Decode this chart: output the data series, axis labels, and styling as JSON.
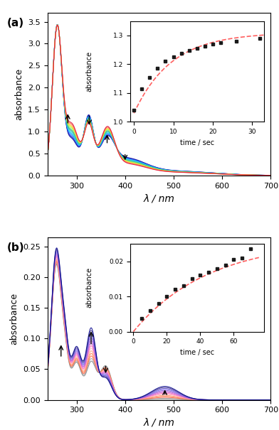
{
  "panel_a": {
    "label": "(a)",
    "xlabel": "λ / nm",
    "ylabel": "absorbance",
    "xlim": [
      240,
      700
    ],
    "ylim": [
      0.0,
      3.7
    ],
    "yticks": [
      0.0,
      0.5,
      1.0,
      1.5,
      2.0,
      2.5,
      3.0,
      3.5
    ],
    "xticks": [
      300,
      400,
      500,
      600,
      700
    ],
    "n_curves": 14,
    "inset": {
      "xlim": [
        -1,
        33
      ],
      "ylim": [
        1.0,
        1.35
      ],
      "yticks": [
        1.0,
        1.1,
        1.2,
        1.3
      ],
      "xticks": [
        0,
        10,
        20,
        30
      ],
      "xlabel": "time / sec",
      "ylabel": "absorbance",
      "t_data": [
        0,
        2,
        4,
        6,
        8,
        10,
        12,
        14,
        16,
        18,
        20,
        22,
        26,
        32
      ],
      "abs_data": [
        1.04,
        1.115,
        1.155,
        1.185,
        1.21,
        1.225,
        1.238,
        1.248,
        1.256,
        1.263,
        1.269,
        1.274,
        1.281,
        1.289
      ],
      "tau": 9.5,
      "A_inf": 1.31,
      "A_0": 1.03
    }
  },
  "panel_b": {
    "label": "(b)",
    "xlabel": "λ / nm",
    "ylabel": "absorbance",
    "xlim": [
      240,
      700
    ],
    "ylim": [
      0.0,
      0.265
    ],
    "yticks": [
      0.0,
      0.05,
      0.1,
      0.15,
      0.2,
      0.25
    ],
    "xticks": [
      300,
      400,
      500,
      600,
      700
    ],
    "n_curves": 14,
    "inset": {
      "xlim": [
        -2,
        78
      ],
      "ylim": [
        0.0,
        0.025
      ],
      "yticks": [
        0.0,
        0.01,
        0.02
      ],
      "xticks": [
        0,
        20,
        40,
        60
      ],
      "xlabel": "time / sec",
      "ylabel": "absorbance",
      "t_data": [
        5,
        10,
        15,
        20,
        25,
        30,
        35,
        40,
        45,
        50,
        55,
        60,
        65,
        70
      ],
      "abs_data": [
        0.0038,
        0.006,
        0.008,
        0.01,
        0.012,
        0.013,
        0.015,
        0.016,
        0.017,
        0.018,
        0.019,
        0.0205,
        0.021,
        0.0235
      ],
      "tau": 45.0,
      "A_inf": 0.026,
      "A_0": 0.0
    }
  },
  "colors_a": [
    "#00008B",
    "#0000CD",
    "#4169E1",
    "#1E90FF",
    "#00BFFF",
    "#40E0D0",
    "#20B2AA",
    "#3CB371",
    "#90EE90",
    "#ADFF2F",
    "#FFD700",
    "#FFA07A",
    "#FF6347",
    "#DC143C"
  ],
  "colors_b": [
    "#808080",
    "#A0A0A0",
    "#FF6347",
    "#FF7F50",
    "#FFA07A",
    "#FFB6C1",
    "#FF69B4",
    "#DA70D6",
    "#BA55D3",
    "#9370DB",
    "#7B68EE",
    "#6A5ACD",
    "#483D8B",
    "#00008B"
  ]
}
